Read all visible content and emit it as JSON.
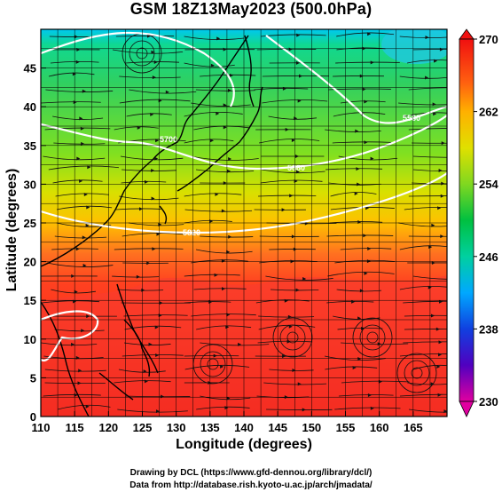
{
  "title": "GSM 18Z13May2023 (500.0hPa)",
  "axes": {
    "xlabel": "Longitude (degrees)",
    "ylabel": "Latitude  (degrees)",
    "xticks": [
      "110",
      "115",
      "120",
      "125",
      "130",
      "135",
      "140",
      "145",
      "150",
      "155",
      "160",
      "165"
    ],
    "yticks": [
      "0",
      "5",
      "10",
      "15",
      "20",
      "25",
      "30",
      "35",
      "40",
      "45"
    ],
    "xrange": [
      110,
      170
    ],
    "yrange": [
      0,
      50
    ]
  },
  "colorbar": {
    "labels": [
      "270",
      "262",
      "254",
      "246",
      "238",
      "230"
    ],
    "range": [
      230,
      270
    ],
    "colors": [
      "#e2008e",
      "#7700b0",
      "#2020d0",
      "#0060ff",
      "#00b0ff",
      "#00d8a0",
      "#00cc40",
      "#50d820",
      "#a0e000",
      "#e0e000",
      "#ffb000",
      "#ff7010",
      "#ff3020",
      "#f01010"
    ]
  },
  "contours": {
    "labels": [
      "5820",
      "5880",
      "5700",
      "5580"
    ],
    "color": "#ffffff"
  },
  "credits": {
    "line1": "Drawing by DCL (https://www.gfd-dennou.org/library/dcl/)",
    "line2": "Data from http://database.rish.kyoto-u.ac.jp/arch/jmadata/"
  }
}
